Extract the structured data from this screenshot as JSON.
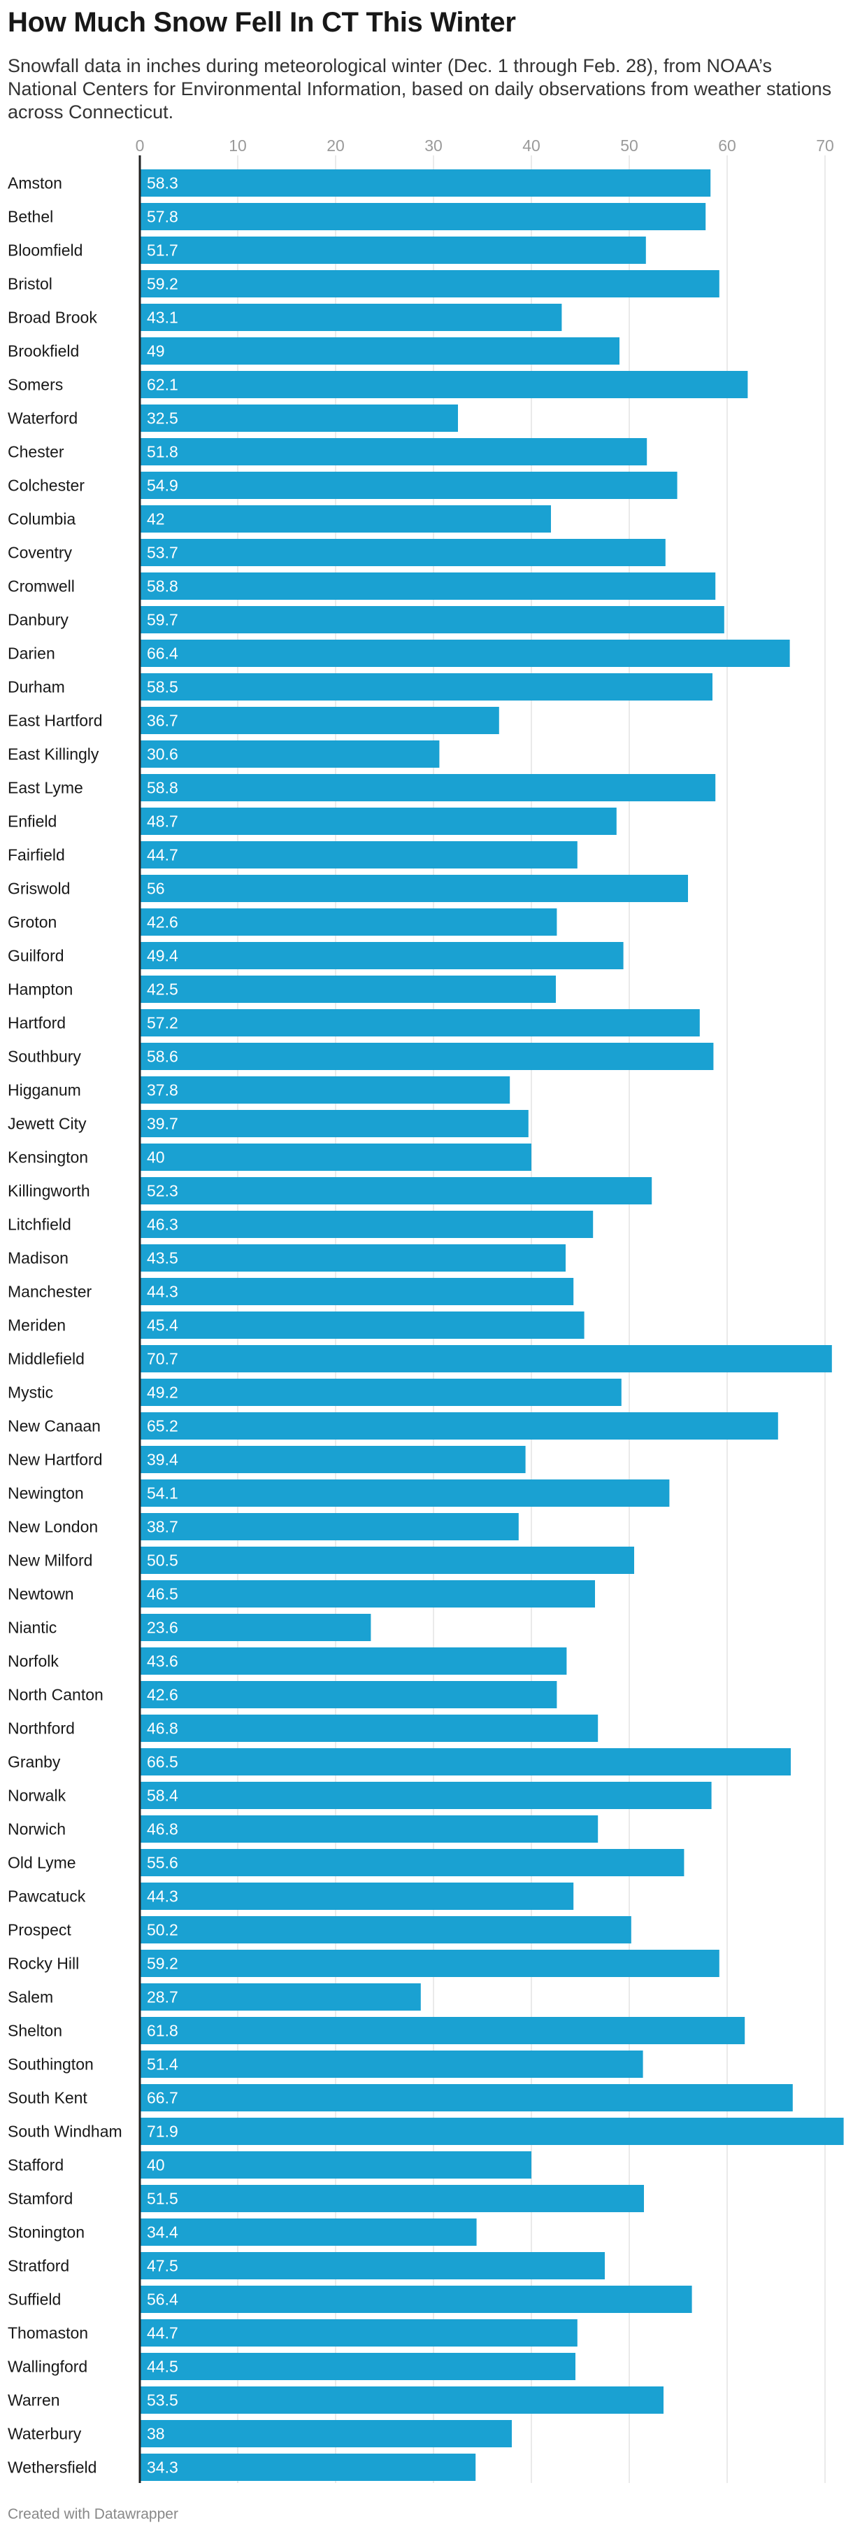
{
  "header": {
    "title": "How Much Snow Fell In CT This Winter",
    "subtitle": "Snowfall data in inches during meteorological winter (Dec. 1 through Feb. 28), from NOAA’s National Centers for Environmental Information, based on daily observations from weather stations across Connecticut."
  },
  "footer": {
    "credit": "Created with Datawrapper"
  },
  "colors": {
    "bar": "#1aa1d2",
    "bar_label": "#ffffff",
    "grid": "#e3e3e3",
    "tick": "#9a9a9a",
    "axis": "#222222"
  },
  "chart_data": {
    "type": "bar",
    "orientation": "horizontal",
    "title": "How Much Snow Fell In CT This Winter",
    "xlim": [
      0,
      72
    ],
    "xticks": [
      0,
      10,
      20,
      30,
      40,
      50,
      60,
      70
    ],
    "grid": true,
    "data_labels": "inside-left",
    "categories": [
      "Amston",
      "Bethel",
      "Bloomfield",
      "Bristol",
      "Broad Brook",
      "Brookfield",
      "Somers",
      "Waterford",
      "Chester",
      "Colchester",
      "Columbia",
      "Coventry",
      "Cromwell",
      "Danbury",
      "Darien",
      "Durham",
      "East Hartford",
      "East Killingly",
      "East Lyme",
      "Enfield",
      "Fairfield",
      "Griswold",
      "Groton",
      "Guilford",
      "Hampton",
      "Hartford",
      "Southbury",
      "Higganum",
      "Jewett City",
      "Kensington",
      "Killingworth",
      "Litchfield",
      "Madison",
      "Manchester",
      "Meriden",
      "Middlefield",
      "Mystic",
      "New Canaan",
      "New Hartford",
      "Newington",
      "New London",
      "New Milford",
      "Newtown",
      "Niantic",
      "Norfolk",
      "North Canton",
      "Northford",
      "Granby",
      "Norwalk",
      "Norwich",
      "Old Lyme",
      "Pawcatuck",
      "Prospect",
      "Rocky Hill",
      "Salem",
      "Shelton",
      "Southington",
      "South Kent",
      "South Windham",
      "Stafford",
      "Stamford",
      "Stonington",
      "Stratford",
      "Suffield",
      "Thomaston",
      "Wallingford",
      "Warren",
      "Waterbury",
      "Wethersfield"
    ],
    "values": [
      58.3,
      57.8,
      51.7,
      59.2,
      43.1,
      49,
      62.1,
      32.5,
      51.8,
      54.9,
      42,
      53.7,
      58.8,
      59.7,
      66.4,
      58.5,
      36.7,
      30.6,
      58.8,
      48.7,
      44.7,
      56,
      42.6,
      49.4,
      42.5,
      57.2,
      58.6,
      37.8,
      39.7,
      40,
      52.3,
      46.3,
      43.5,
      44.3,
      45.4,
      70.7,
      49.2,
      65.2,
      39.4,
      54.1,
      38.7,
      50.5,
      46.5,
      23.6,
      43.6,
      42.6,
      46.8,
      66.5,
      58.4,
      46.8,
      55.6,
      44.3,
      50.2,
      59.2,
      28.7,
      61.8,
      51.4,
      66.7,
      71.9,
      40,
      51.5,
      34.4,
      47.5,
      56.4,
      44.7,
      44.5,
      53.5,
      38,
      34.3
    ]
  }
}
